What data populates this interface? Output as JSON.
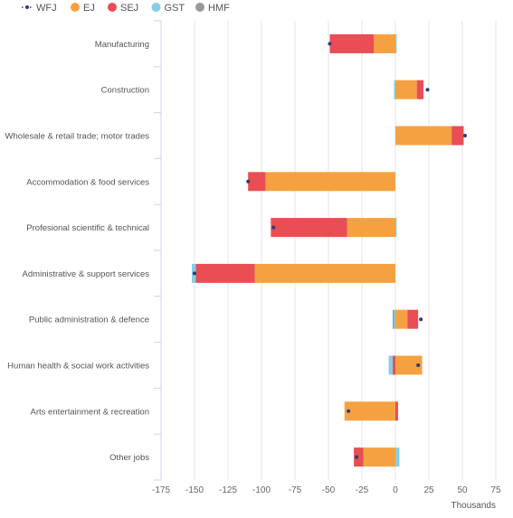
{
  "chart_data": {
    "type": "bar",
    "orientation": "horizontal",
    "stacked": true,
    "categories": [
      "Manufacturing",
      "Construction",
      "Wholesale & retail trade; motor trades",
      "Accommodation & food services",
      "Profesional scientific & technical",
      "Administrative & support services",
      "Public administration & defence",
      "Human health & social work activities",
      "Arts entertainment & recreation",
      "Other jobs"
    ],
    "series": [
      {
        "name": "EJ",
        "type": "bar",
        "color": "#f5a142",
        "values": [
          -16,
          16,
          42,
          -97,
          -36,
          -105,
          9,
          20,
          -38,
          -24
        ]
      },
      {
        "name": "SEJ",
        "type": "bar",
        "color": "#e84e53",
        "values": [
          -33,
          5,
          9,
          -13,
          -57,
          -44,
          8,
          -2,
          2,
          -7
        ]
      },
      {
        "name": "GST",
        "type": "bar",
        "color": "#86cde6",
        "values": [
          1,
          -1,
          0,
          0,
          1,
          -3,
          -1,
          -3,
          0,
          3
        ]
      },
      {
        "name": "HMF",
        "type": "bar",
        "color": "#999999",
        "values": [
          0,
          0,
          0,
          0,
          0,
          0,
          -1,
          0,
          0,
          0
        ]
      },
      {
        "name": "WFJ",
        "type": "dot",
        "color": "#2f3a78",
        "values": [
          -49,
          24,
          52,
          -110,
          -91,
          -150,
          19,
          17,
          -35,
          -29
        ]
      }
    ],
    "legend": [
      "WFJ",
      "EJ",
      "SEJ",
      "GST",
      "HMF"
    ],
    "legend_position": "top-left",
    "xlabel": "Thousands",
    "xlim": [
      -175,
      75
    ],
    "xticks": [
      -175,
      -150,
      -125,
      -100,
      -75,
      -50,
      -25,
      0,
      25,
      50,
      75
    ],
    "grid": true
  }
}
